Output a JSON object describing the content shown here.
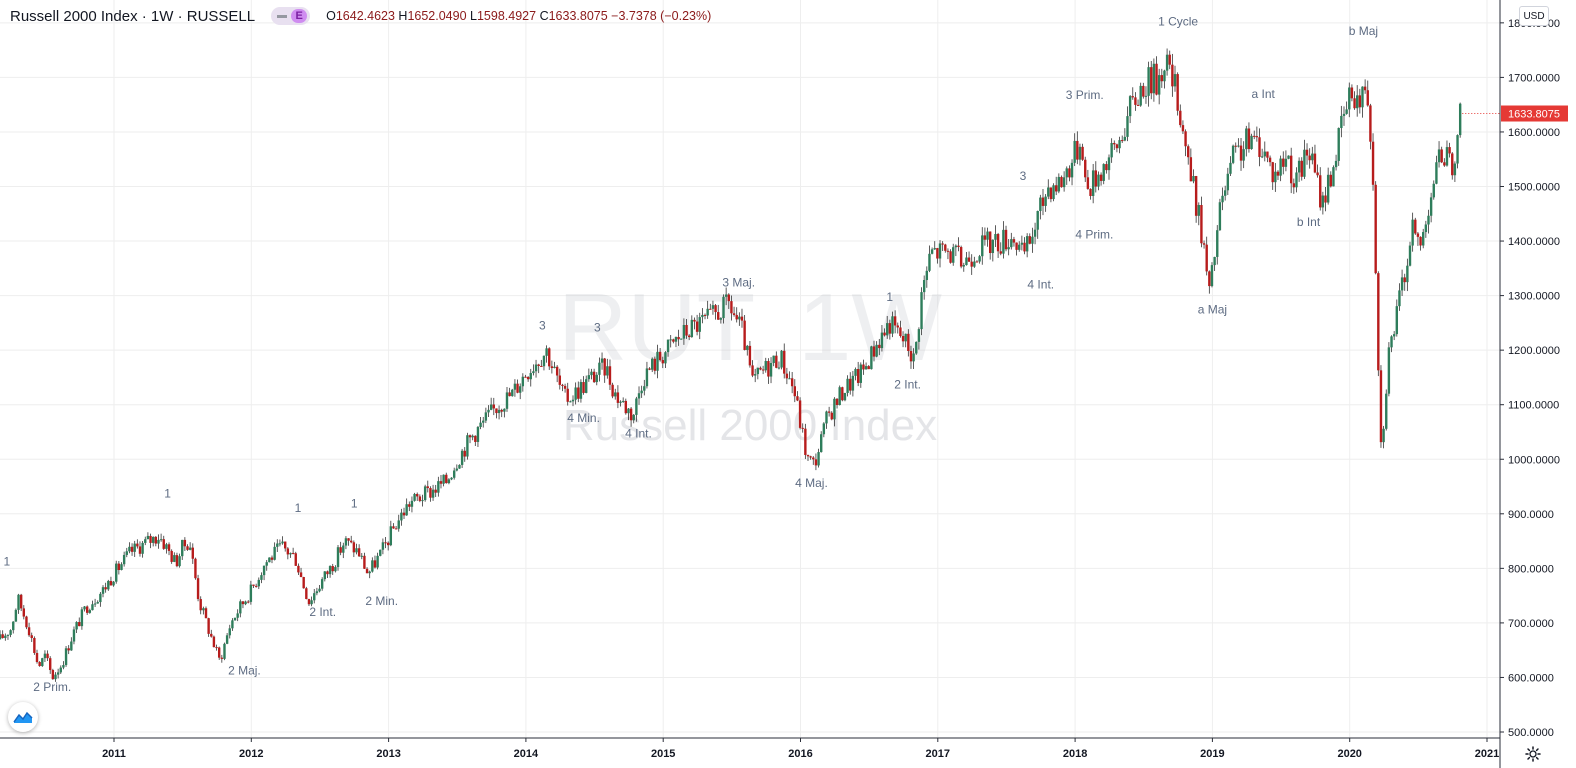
{
  "header": {
    "symbol_title": "Russell 2000 Index · 1W · RUSSELL",
    "badge": "E",
    "open_label": "O",
    "open": "1642.4623",
    "high_label": "H",
    "high": "1652.0490",
    "low_label": "L",
    "low": "1598.4927",
    "close_label": "C",
    "close": "1633.8075",
    "change": "−3.7378 (−0.23%)"
  },
  "currency": "USD",
  "watermark": {
    "line1": "RUT, 1W",
    "line2": "Russell 2000 Index"
  },
  "icons": {
    "logo": "tradingview-logo-icon",
    "settings": "gear-icon",
    "collapse": "minus-icon"
  },
  "colors": {
    "up": "#26a69a",
    "up_body": "#2e7d5b",
    "down": "#b71c1c",
    "last_price": "#e53935",
    "grid": "#eeeeee",
    "label": "#5d6b82"
  },
  "chart_data": {
    "type": "candlestick",
    "x_ticks": [
      "2011",
      "2012",
      "2013",
      "2014",
      "2015",
      "2016",
      "2017",
      "2018",
      "2019",
      "2020",
      "2021"
    ],
    "y_ticks": [
      "500.0000",
      "600.0000",
      "700.0000",
      "800.0000",
      "900.0000",
      "1000.0000",
      "1100.0000",
      "1200.0000",
      "1300.0000",
      "1400.0000",
      "1500.0000",
      "1600.0000",
      "1700.0000",
      "1800.0000"
    ],
    "ylim": [
      480,
      1835
    ],
    "xlim": [
      2010.17,
      2021.2
    ],
    "last_price": 1633.8075,
    "last_price_label": "1633.8075",
    "anchors": [
      [
        2010.17,
        670
      ],
      [
        2010.25,
        690
      ],
      [
        2010.3,
        745
      ],
      [
        2010.38,
        690
      ],
      [
        2010.45,
        620
      ],
      [
        2010.5,
        640
      ],
      [
        2010.55,
        600
      ],
      [
        2010.62,
        625
      ],
      [
        2010.7,
        680
      ],
      [
        2010.8,
        730
      ],
      [
        2010.92,
        760
      ],
      [
        2011.0,
        790
      ],
      [
        2011.12,
        830
      ],
      [
        2011.25,
        850
      ],
      [
        2011.33,
        860
      ],
      [
        2011.45,
        810
      ],
      [
        2011.5,
        840
      ],
      [
        2011.55,
        850
      ],
      [
        2011.62,
        740
      ],
      [
        2011.7,
        680
      ],
      [
        2011.77,
        630
      ],
      [
        2011.85,
        700
      ],
      [
        2011.92,
        730
      ],
      [
        2012.0,
        760
      ],
      [
        2012.1,
        810
      ],
      [
        2012.22,
        840
      ],
      [
        2012.32,
        820
      ],
      [
        2012.38,
        770
      ],
      [
        2012.42,
        740
      ],
      [
        2012.52,
        780
      ],
      [
        2012.6,
        810
      ],
      [
        2012.68,
        850
      ],
      [
        2012.78,
        830
      ],
      [
        2012.85,
        790
      ],
      [
        2012.95,
        830
      ],
      [
        2013.05,
        880
      ],
      [
        2013.15,
        920
      ],
      [
        2013.3,
        940
      ],
      [
        2013.42,
        960
      ],
      [
        2013.5,
        1000
      ],
      [
        2013.6,
        1040
      ],
      [
        2013.7,
        1070
      ],
      [
        2013.8,
        1100
      ],
      [
        2013.9,
        1120
      ],
      [
        2014.0,
        1160
      ],
      [
        2014.15,
        1200
      ],
      [
        2014.28,
        1110
      ],
      [
        2014.35,
        1120
      ],
      [
        2014.48,
        1150
      ],
      [
        2014.58,
        1170
      ],
      [
        2014.65,
        1120
      ],
      [
        2014.78,
        1080
      ],
      [
        2014.85,
        1150
      ],
      [
        2014.95,
        1180
      ],
      [
        2015.1,
        1220
      ],
      [
        2015.2,
        1240
      ],
      [
        2015.35,
        1260
      ],
      [
        2015.48,
        1285
      ],
      [
        2015.58,
        1230
      ],
      [
        2015.65,
        1140
      ],
      [
        2015.72,
        1160
      ],
      [
        2015.85,
        1190
      ],
      [
        2015.95,
        1130
      ],
      [
        2016.05,
        1000
      ],
      [
        2016.1,
        990
      ],
      [
        2016.2,
        1080
      ],
      [
        2016.32,
        1130
      ],
      [
        2016.45,
        1160
      ],
      [
        2016.55,
        1210
      ],
      [
        2016.65,
        1250
      ],
      [
        2016.78,
        1210
      ],
      [
        2016.83,
        1180
      ],
      [
        2016.88,
        1300
      ],
      [
        2016.95,
        1380
      ],
      [
        2017.08,
        1380
      ],
      [
        2017.18,
        1360
      ],
      [
        2017.3,
        1390
      ],
      [
        2017.45,
        1400
      ],
      [
        2017.55,
        1410
      ],
      [
        2017.62,
        1370
      ],
      [
        2017.7,
        1420
      ],
      [
        2017.8,
        1500
      ],
      [
        2017.9,
        1510
      ],
      [
        2017.98,
        1550
      ],
      [
        2018.05,
        1590
      ],
      [
        2018.08,
        1490
      ],
      [
        2018.18,
        1530
      ],
      [
        2018.3,
        1570
      ],
      [
        2018.4,
        1640
      ],
      [
        2018.5,
        1690
      ],
      [
        2018.62,
        1700
      ],
      [
        2018.65,
        1740
      ],
      [
        2018.75,
        1660
      ],
      [
        2018.85,
        1510
      ],
      [
        2018.92,
        1420
      ],
      [
        2018.98,
        1300
      ],
      [
        2019.05,
        1450
      ],
      [
        2019.15,
        1550
      ],
      [
        2019.25,
        1580
      ],
      [
        2019.35,
        1580
      ],
      [
        2019.45,
        1520
      ],
      [
        2019.55,
        1560
      ],
      [
        2019.6,
        1500
      ],
      [
        2019.7,
        1570
      ],
      [
        2019.8,
        1470
      ],
      [
        2019.88,
        1540
      ],
      [
        2019.95,
        1620
      ],
      [
        2020.02,
        1680
      ],
      [
        2020.08,
        1650
      ],
      [
        2020.12,
        1700
      ],
      [
        2020.16,
        1580
      ],
      [
        2020.18,
        1460
      ],
      [
        2020.2,
        1250
      ],
      [
        2020.23,
        1010
      ],
      [
        2020.28,
        1190
      ],
      [
        2020.33,
        1250
      ],
      [
        2020.4,
        1340
      ],
      [
        2020.45,
        1420
      ],
      [
        2020.52,
        1390
      ],
      [
        2020.58,
        1480
      ],
      [
        2020.62,
        1520
      ],
      [
        2020.68,
        1570
      ],
      [
        2020.72,
        1550
      ],
      [
        2020.75,
        1490
      ],
      [
        2020.78,
        1620
      ],
      [
        2020.82,
        1634
      ]
    ],
    "annotations": [
      {
        "text": "1",
        "x": 2010.22,
        "y": 805
      },
      {
        "text": "2 Prim.",
        "x": 2010.55,
        "y": 575
      },
      {
        "text": "1",
        "x": 2011.39,
        "y": 930
      },
      {
        "text": "2 Maj.",
        "x": 2011.95,
        "y": 605
      },
      {
        "text": "1",
        "x": 2012.34,
        "y": 903
      },
      {
        "text": "2 Int.",
        "x": 2012.52,
        "y": 713
      },
      {
        "text": "1",
        "x": 2012.75,
        "y": 912
      },
      {
        "text": "2 Min.",
        "x": 2012.95,
        "y": 733
      },
      {
        "text": "3",
        "x": 2014.12,
        "y": 1238
      },
      {
        "text": "3",
        "x": 2014.52,
        "y": 1234
      },
      {
        "text": "4 Min.",
        "x": 2014.42,
        "y": 1068
      },
      {
        "text": "4 Int.",
        "x": 2014.82,
        "y": 1040
      },
      {
        "text": "3 Maj.",
        "x": 2015.55,
        "y": 1317
      },
      {
        "text": "4 Maj.",
        "x": 2016.08,
        "y": 949
      },
      {
        "text": "1",
        "x": 2016.65,
        "y": 1290
      },
      {
        "text": "2 Int.",
        "x": 2016.78,
        "y": 1130
      },
      {
        "text": "3",
        "x": 2017.62,
        "y": 1512
      },
      {
        "text": "4 Int.",
        "x": 2017.75,
        "y": 1313
      },
      {
        "text": "3 Prim.",
        "x": 2018.07,
        "y": 1660
      },
      {
        "text": "4 Prim.",
        "x": 2018.14,
        "y": 1405
      },
      {
        "text": "1 Cycle",
        "x": 2018.75,
        "y": 1795
      },
      {
        "text": "a Maj",
        "x": 2019.0,
        "y": 1267
      },
      {
        "text": "a Int",
        "x": 2019.37,
        "y": 1662
      },
      {
        "text": "b Int",
        "x": 2019.7,
        "y": 1428
      },
      {
        "text": "b Maj",
        "x": 2020.1,
        "y": 1778
      }
    ]
  }
}
